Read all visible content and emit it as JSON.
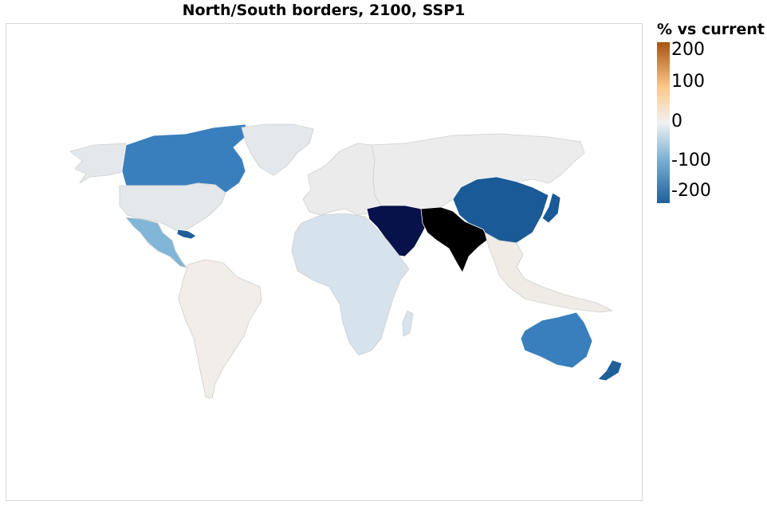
{
  "title": "North/South borders, 2100, SSP1",
  "legend": {
    "title": "% vs current",
    "ticks": [
      "200",
      "100",
      "0",
      "-100",
      "-200"
    ],
    "colors": {
      "high": "#a8520f",
      "mid_high": "#fdc98a",
      "zero": "#f1f1f1",
      "mid_low": "#7fb3d5",
      "low": "#1f5f9a"
    }
  },
  "map": {
    "regions": [
      {
        "name": "Alaska",
        "color": "#e4e8ea"
      },
      {
        "name": "Canada",
        "color": "#3a7fbd"
      },
      {
        "name": "Greenland",
        "color": "#e4e8ea"
      },
      {
        "name": "Caribbean",
        "color": "#1f5f9a"
      },
      {
        "name": "United States",
        "color": "#e4e8ea"
      },
      {
        "name": "Mexico and Central America",
        "color": "#82b6d8"
      },
      {
        "name": "South America",
        "color": "#f1ede8"
      },
      {
        "name": "Europe",
        "color": "#ebebeb"
      },
      {
        "name": "Russia and Central Asia",
        "color": "#ececec"
      },
      {
        "name": "Middle East",
        "color": "#07114a"
      },
      {
        "name": "South Asia",
        "color": "#000000"
      },
      {
        "name": "China, Mongolia, Japan, Korea",
        "color": "#1a5a96"
      },
      {
        "name": "Southeast Asia",
        "color": "#efece6"
      },
      {
        "name": "Africa",
        "color": "#d6e3ed"
      },
      {
        "name": "Australia",
        "color": "#3a7fbd"
      },
      {
        "name": "New Zealand",
        "color": "#1f5f9a"
      }
    ]
  }
}
